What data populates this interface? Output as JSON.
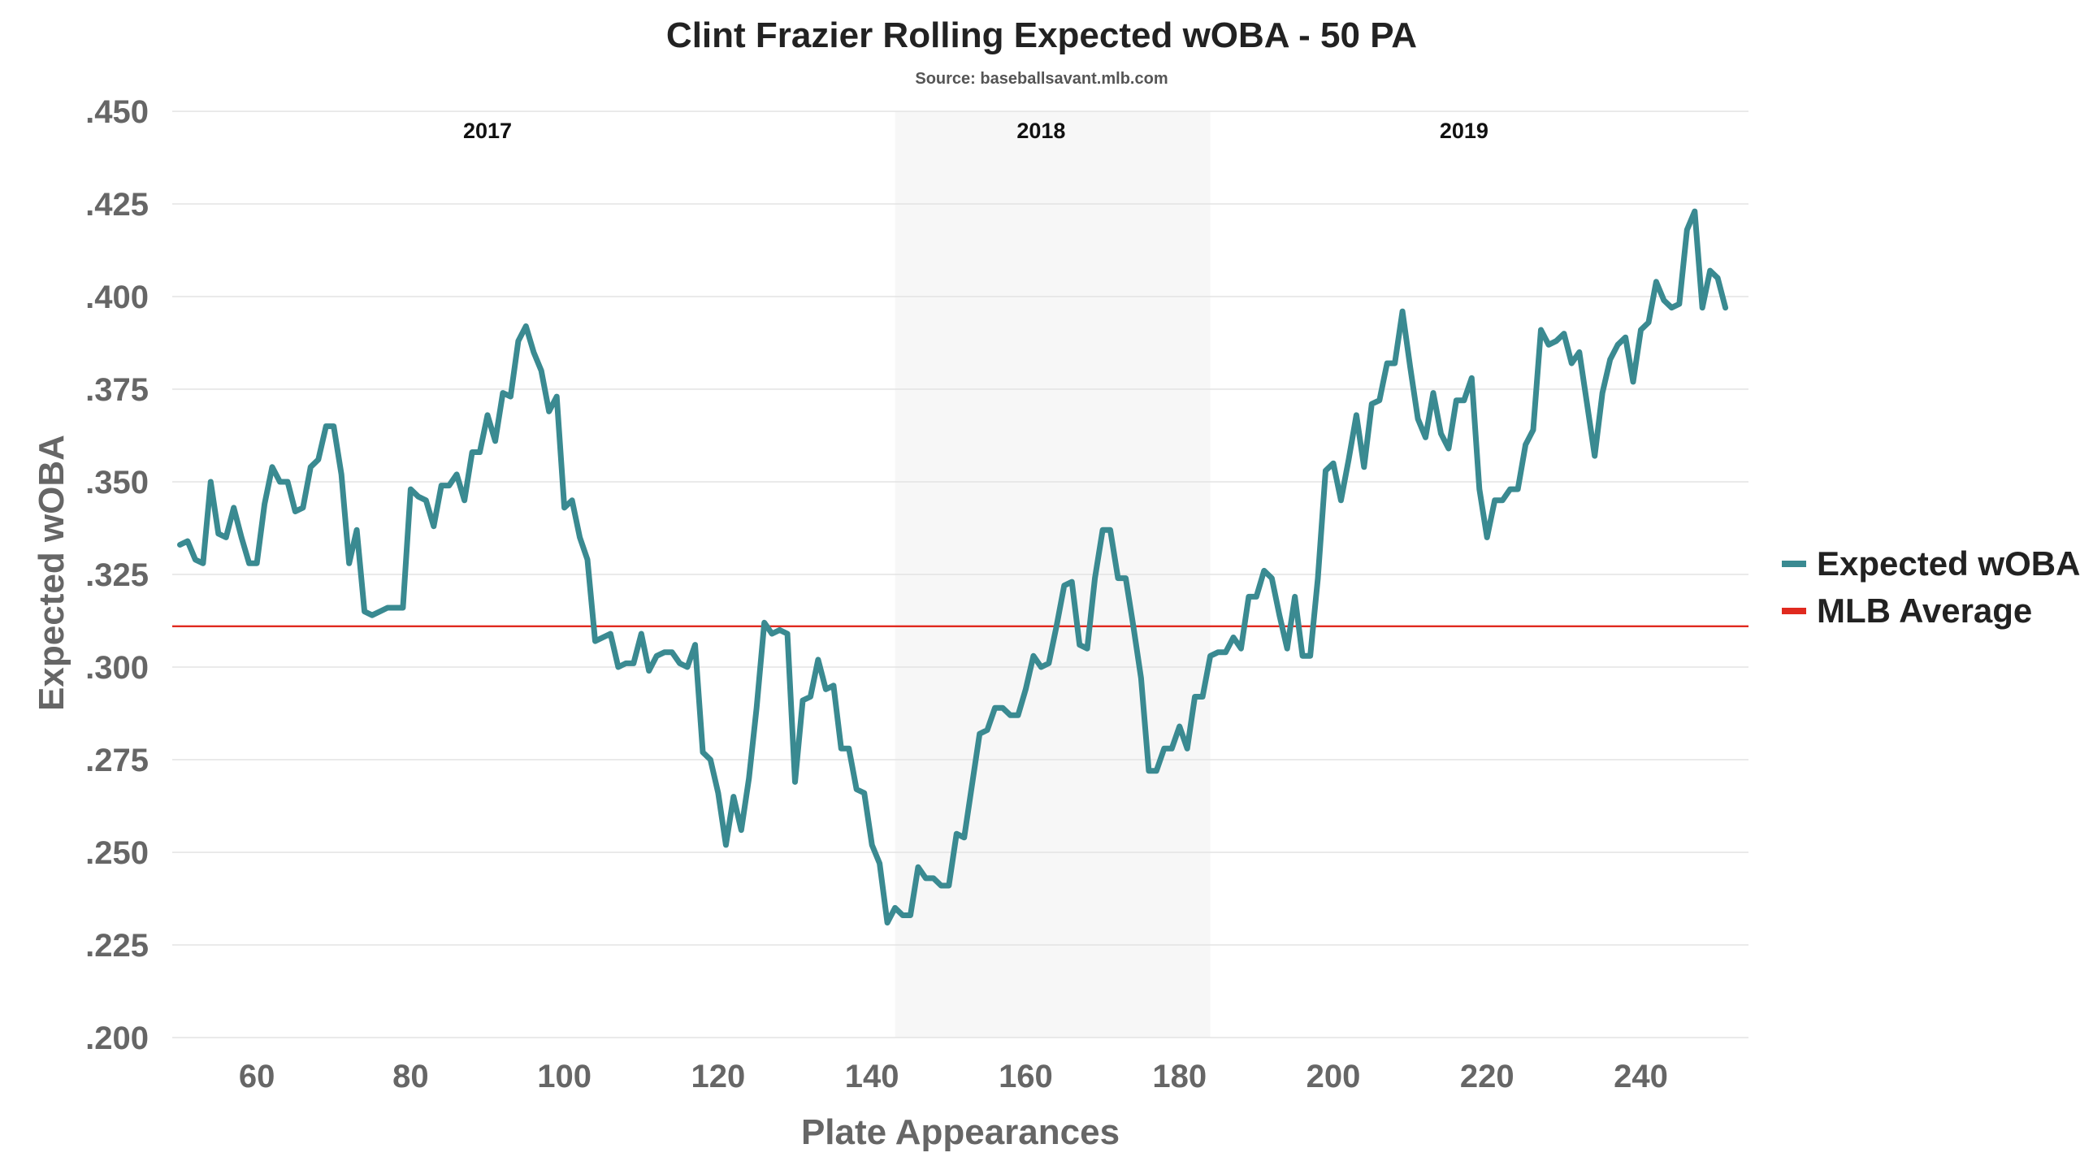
{
  "chart_data": {
    "type": "line",
    "title": "Clint Frazier Rolling Expected wOBA - 50 PA",
    "subtitle": "Source: baseballsavant.mlb.com",
    "xlabel": "Plate Appearances",
    "ylabel": "Expected wOBA",
    "xlim": [
      49,
      254
    ],
    "ylim": [
      0.2,
      0.45
    ],
    "x_ticks": [
      {
        "value": 60,
        "label": "60"
      },
      {
        "value": 80,
        "label": "80"
      },
      {
        "value": 100,
        "label": "100"
      },
      {
        "value": 120,
        "label": "120"
      },
      {
        "value": 140,
        "label": "140"
      },
      {
        "value": 160,
        "label": "160"
      },
      {
        "value": 180,
        "label": "180"
      },
      {
        "value": 200,
        "label": "200"
      },
      {
        "value": 220,
        "label": "220"
      },
      {
        "value": 240,
        "label": "240"
      }
    ],
    "y_ticks": [
      {
        "value": 0.2,
        "label": ".200"
      },
      {
        "value": 0.225,
        "label": ".225"
      },
      {
        "value": 0.25,
        "label": ".250"
      },
      {
        "value": 0.275,
        "label": ".275"
      },
      {
        "value": 0.3,
        "label": ".300"
      },
      {
        "value": 0.325,
        "label": ".325"
      },
      {
        "value": 0.35,
        "label": ".350"
      },
      {
        "value": 0.375,
        "label": ".375"
      },
      {
        "value": 0.4,
        "label": ".400"
      },
      {
        "value": 0.425,
        "label": ".425"
      },
      {
        "value": 0.45,
        "label": ".450"
      }
    ],
    "grid": "horizontal",
    "legend_position": "right",
    "seasons": [
      {
        "label": "2017",
        "label_x": 90,
        "shaded": false
      },
      {
        "label": "2018",
        "start": 143,
        "end": 184,
        "label_x": 162,
        "shaded": true
      },
      {
        "label": "2019",
        "label_x": 217,
        "shaded": false
      }
    ],
    "reference_line": {
      "name": "MLB Average",
      "value": 0.311,
      "color": "#e02a1f"
    },
    "series": [
      {
        "name": "Expected wOBA",
        "color": "#3a8a91",
        "x": [
          50,
          51,
          52,
          53,
          54,
          55,
          56,
          57,
          58,
          59,
          60,
          61,
          62,
          63,
          64,
          65,
          66,
          67,
          68,
          69,
          70,
          71,
          72,
          73,
          74,
          75,
          76,
          77,
          78,
          79,
          80,
          81,
          82,
          83,
          84,
          85,
          86,
          87,
          88,
          89,
          90,
          91,
          92,
          93,
          94,
          95,
          96,
          97,
          98,
          99,
          100,
          101,
          102,
          103,
          104,
          105,
          106,
          107,
          108,
          109,
          110,
          111,
          112,
          113,
          114,
          115,
          116,
          117,
          118,
          119,
          120,
          121,
          122,
          123,
          124,
          125,
          126,
          127,
          128,
          129,
          130,
          131,
          132,
          133,
          134,
          135,
          136,
          137,
          138,
          139,
          140,
          141,
          142,
          143,
          144,
          145,
          146,
          147,
          148,
          149,
          150,
          151,
          152,
          153,
          154,
          155,
          156,
          157,
          158,
          159,
          160,
          161,
          162,
          163,
          164,
          165,
          166,
          167,
          168,
          169,
          170,
          171,
          172,
          173,
          174,
          175,
          176,
          177,
          178,
          179,
          180,
          181,
          182,
          183,
          184,
          185,
          186,
          187,
          188,
          189,
          190,
          191,
          192,
          193,
          194,
          195,
          196,
          197,
          198,
          199,
          200,
          201,
          202,
          203,
          204,
          205,
          206,
          207,
          208,
          209,
          210,
          211,
          212,
          213,
          214,
          215,
          216,
          217,
          218,
          219,
          220,
          221,
          222,
          223,
          224,
          225,
          226,
          227,
          228,
          229,
          230,
          231,
          232,
          233,
          234,
          235,
          236,
          237,
          238,
          239,
          240,
          241,
          242,
          243,
          244,
          245,
          246,
          247,
          248,
          249,
          250,
          251
        ],
        "values": [
          0.333,
          0.334,
          0.329,
          0.328,
          0.35,
          0.336,
          0.335,
          0.343,
          0.335,
          0.328,
          0.328,
          0.344,
          0.354,
          0.35,
          0.35,
          0.342,
          0.343,
          0.354,
          0.356,
          0.365,
          0.365,
          0.352,
          0.328,
          0.337,
          0.315,
          0.314,
          0.315,
          0.316,
          0.316,
          0.316,
          0.348,
          0.346,
          0.345,
          0.338,
          0.349,
          0.349,
          0.352,
          0.345,
          0.358,
          0.358,
          0.368,
          0.361,
          0.374,
          0.373,
          0.388,
          0.392,
          0.385,
          0.38,
          0.369,
          0.373,
          0.343,
          0.345,
          0.335,
          0.329,
          0.307,
          0.308,
          0.309,
          0.3,
          0.301,
          0.301,
          0.309,
          0.299,
          0.303,
          0.304,
          0.304,
          0.301,
          0.3,
          0.306,
          0.277,
          0.275,
          0.266,
          0.252,
          0.265,
          0.256,
          0.27,
          0.289,
          0.312,
          0.309,
          0.31,
          0.309,
          0.269,
          0.291,
          0.292,
          0.302,
          0.294,
          0.295,
          0.278,
          0.278,
          0.267,
          0.266,
          0.252,
          0.247,
          0.231,
          0.235,
          0.233,
          0.233,
          0.246,
          0.243,
          0.243,
          0.241,
          0.241,
          0.255,
          0.254,
          0.268,
          0.282,
          0.283,
          0.289,
          0.289,
          0.287,
          0.287,
          0.294,
          0.303,
          0.3,
          0.301,
          0.311,
          0.322,
          0.323,
          0.306,
          0.305,
          0.324,
          0.337,
          0.337,
          0.324,
          0.324,
          0.311,
          0.297,
          0.272,
          0.272,
          0.278,
          0.278,
          0.284,
          0.278,
          0.292,
          0.292,
          0.303,
          0.304,
          0.304,
          0.308,
          0.305,
          0.319,
          0.319,
          0.326,
          0.324,
          0.314,
          0.305,
          0.319,
          0.303,
          0.303,
          0.324,
          0.353,
          0.355,
          0.345,
          0.356,
          0.368,
          0.354,
          0.371,
          0.372,
          0.382,
          0.382,
          0.396,
          0.381,
          0.367,
          0.362,
          0.374,
          0.363,
          0.359,
          0.372,
          0.372,
          0.378,
          0.348,
          0.335,
          0.345,
          0.345,
          0.348,
          0.348,
          0.36,
          0.364,
          0.391,
          0.387,
          0.388,
          0.39,
          0.382,
          0.385,
          0.371,
          0.357,
          0.374,
          0.383,
          0.387,
          0.389,
          0.377,
          0.391,
          0.393,
          0.404,
          0.399,
          0.397,
          0.398,
          0.418,
          0.423,
          0.397,
          0.407,
          0.405,
          0.397
        ]
      }
    ]
  }
}
